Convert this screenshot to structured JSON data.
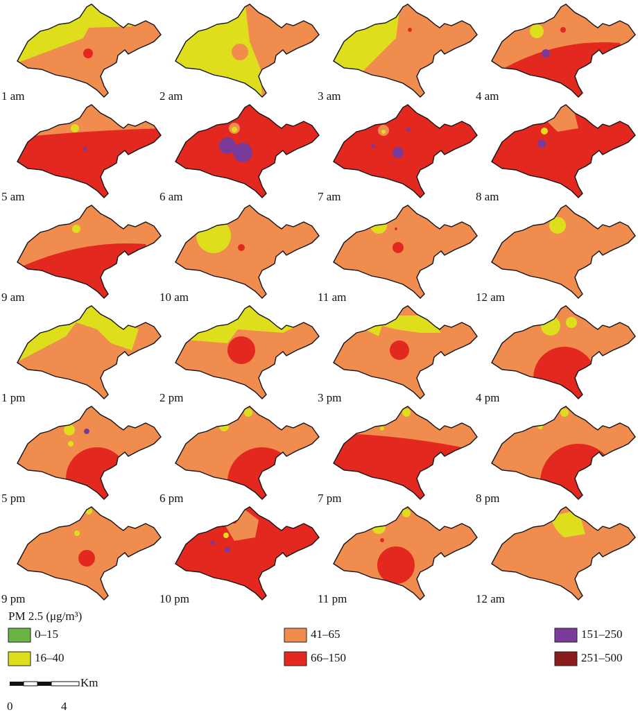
{
  "panels": [
    "1 am",
    "2 am",
    "3 am",
    "4 am",
    "5 am",
    "6 am",
    "7 am",
    "8 am",
    "9 am",
    "10 am",
    "11 am",
    "12 am",
    "1 pm",
    "2 pm",
    "3 pm",
    "4 pm",
    "5 pm",
    "6 pm",
    "7 pm",
    "8 pm",
    "9 pm",
    "10 pm",
    "11 pm",
    "12 am"
  ],
  "legend": {
    "title": "PM 2.5 (μg/m³)",
    "items": [
      {
        "label": "0–15",
        "color": "#6ab545"
      },
      {
        "label": "16–40",
        "color": "#dede1c"
      },
      {
        "label": "41–65",
        "color": "#f08c4e"
      },
      {
        "label": "66–150",
        "color": "#e3291f"
      },
      {
        "label": "151–250",
        "color": "#7a3a9a"
      },
      {
        "label": "251–500",
        "color": "#8b1a1a"
      }
    ]
  },
  "scale": {
    "unit": "Km",
    "labels": [
      "0",
      "4"
    ]
  }
}
